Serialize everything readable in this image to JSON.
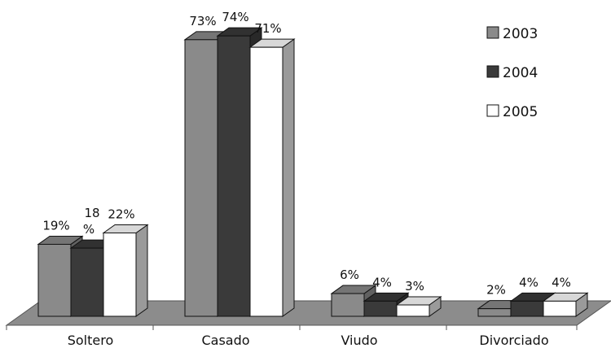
{
  "chart_data": {
    "type": "bar",
    "categories": [
      "Soltero",
      "Casado",
      "Viudo",
      "Divorciado"
    ],
    "series": [
      {
        "name": "2003",
        "values": [
          19,
          73,
          6,
          2
        ],
        "labels": [
          "19%",
          "73%",
          "6%",
          "2%"
        ],
        "color": "#8a8a8a"
      },
      {
        "name": "2004",
        "values": [
          18,
          74,
          4,
          4
        ],
        "labels": [
          "18 %",
          "74%",
          "4%",
          "4%"
        ],
        "color": "#3a3a3a"
      },
      {
        "name": "2005",
        "values": [
          22,
          71,
          3,
          4
        ],
        "labels": [
          "22%",
          "71%",
          "3%",
          "4%"
        ],
        "color": "#ffffff"
      }
    ],
    "ylim": [
      0,
      80
    ],
    "grid": false,
    "legend": "top-right",
    "style": "3d-bar",
    "floor_color": "#8c8c8c"
  }
}
